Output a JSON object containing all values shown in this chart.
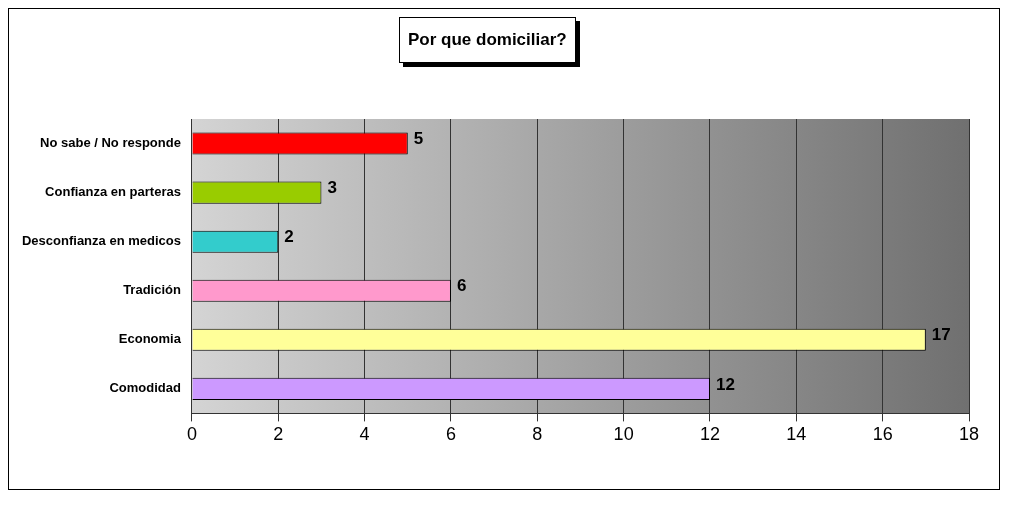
{
  "chart_data": {
    "type": "bar",
    "title": "Por que domiciliar?",
    "orientation": "horizontal",
    "categories": [
      "No sabe / No responde",
      "Confianza en parteras",
      "Desconfianza en medicos",
      "Tradición",
      "Economia",
      "Comodidad"
    ],
    "values": [
      5,
      3,
      2,
      6,
      17,
      12
    ],
    "colors": [
      "#ff0000",
      "#99cc00",
      "#33cccc",
      "#ff99cc",
      "#ffff99",
      "#cc99ff"
    ],
    "xlim": [
      0,
      18
    ],
    "xticks": [
      0,
      2,
      4,
      6,
      8,
      10,
      12,
      14,
      16,
      18
    ],
    "grid": "x",
    "data_labels": true
  }
}
